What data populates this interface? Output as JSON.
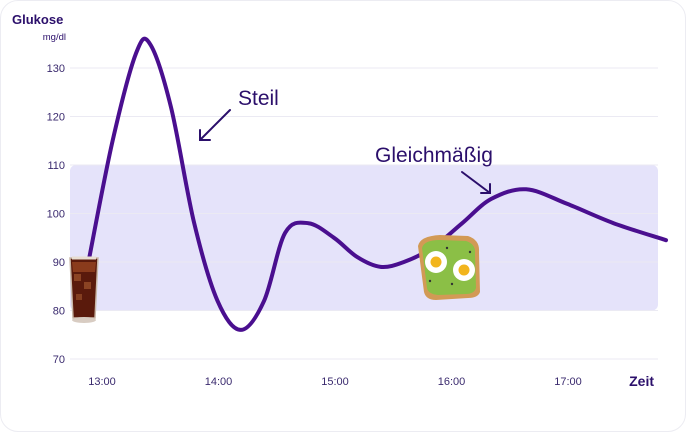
{
  "chart_data": {
    "type": "line",
    "ylabel": "Glukose",
    "yunit": "mg/dl",
    "xlabel": "Zeit",
    "ylim": [
      70,
      135
    ],
    "yticks": [
      70,
      80,
      90,
      100,
      110,
      120,
      130
    ],
    "xticks": [
      "13:00",
      "14:00",
      "15:00",
      "16:00",
      "17:00"
    ],
    "xtick_hours": [
      13,
      14,
      15,
      16,
      17
    ],
    "target_range": [
      80,
      110
    ],
    "grid": true,
    "series": [
      {
        "color": "#4a0f8f",
        "points": [
          {
            "x": 12.9,
            "y": 91
          },
          {
            "x": 13.1,
            "y": 115
          },
          {
            "x": 13.3,
            "y": 133
          },
          {
            "x": 13.42,
            "y": 135
          },
          {
            "x": 13.6,
            "y": 122
          },
          {
            "x": 13.8,
            "y": 98
          },
          {
            "x": 14.0,
            "y": 82
          },
          {
            "x": 14.2,
            "y": 76
          },
          {
            "x": 14.4,
            "y": 82
          },
          {
            "x": 14.58,
            "y": 96
          },
          {
            "x": 14.78,
            "y": 98
          },
          {
            "x": 15.0,
            "y": 95
          },
          {
            "x": 15.2,
            "y": 91
          },
          {
            "x": 15.4,
            "y": 89
          },
          {
            "x": 15.6,
            "y": 90
          },
          {
            "x": 15.85,
            "y": 93
          },
          {
            "x": 16.1,
            "y": 98
          },
          {
            "x": 16.35,
            "y": 103
          },
          {
            "x": 16.65,
            "y": 105
          },
          {
            "x": 17.0,
            "y": 102
          },
          {
            "x": 17.4,
            "y": 98
          },
          {
            "x": 17.85,
            "y": 94.5
          }
        ]
      }
    ],
    "annotations": [
      {
        "text": "Steil",
        "x": 13.75,
        "y": 119
      },
      {
        "text": "Gleichmäßig",
        "x": 16.3,
        "y": 103
      }
    ]
  }
}
